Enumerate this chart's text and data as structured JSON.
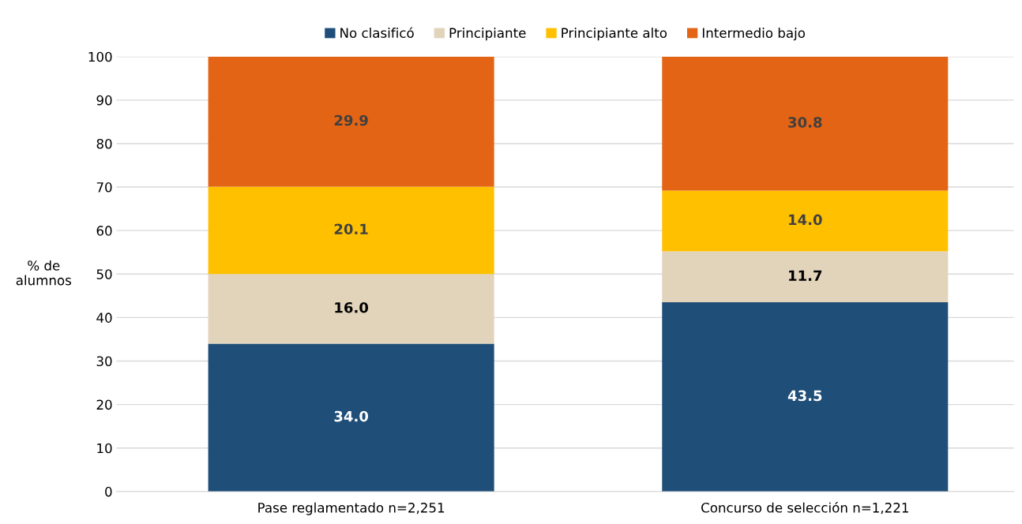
{
  "chart_data": {
    "type": "bar",
    "stacked": true,
    "ylabel": "% de\nalumnos",
    "categories": [
      "Pase reglamentado n=2,251",
      "Concurso de selección n=1,221"
    ],
    "series": [
      {
        "name": "No clasificó",
        "color": "#1f4e79",
        "values": [
          34.0,
          43.5
        ],
        "value_labels": [
          "34.0",
          "43.5"
        ]
      },
      {
        "name": "Principiante",
        "color": "#e2d3bb",
        "values": [
          16.0,
          11.7
        ],
        "value_labels": [
          "16.0",
          "11.7"
        ]
      },
      {
        "name": "Principiante alto",
        "color": "#ffc000",
        "values": [
          20.1,
          14.0
        ],
        "value_labels": [
          "20.1",
          "14.0"
        ]
      },
      {
        "name": "Intermedio bajo",
        "color": "#e36414",
        "values": [
          29.9,
          30.8
        ],
        "value_labels": [
          "29.9",
          "30.8"
        ]
      }
    ],
    "ylim": [
      0,
      100
    ],
    "yticks": [
      0,
      10,
      20,
      30,
      40,
      50,
      60,
      70,
      80,
      90,
      100
    ],
    "grid": "y",
    "legend": "top"
  }
}
